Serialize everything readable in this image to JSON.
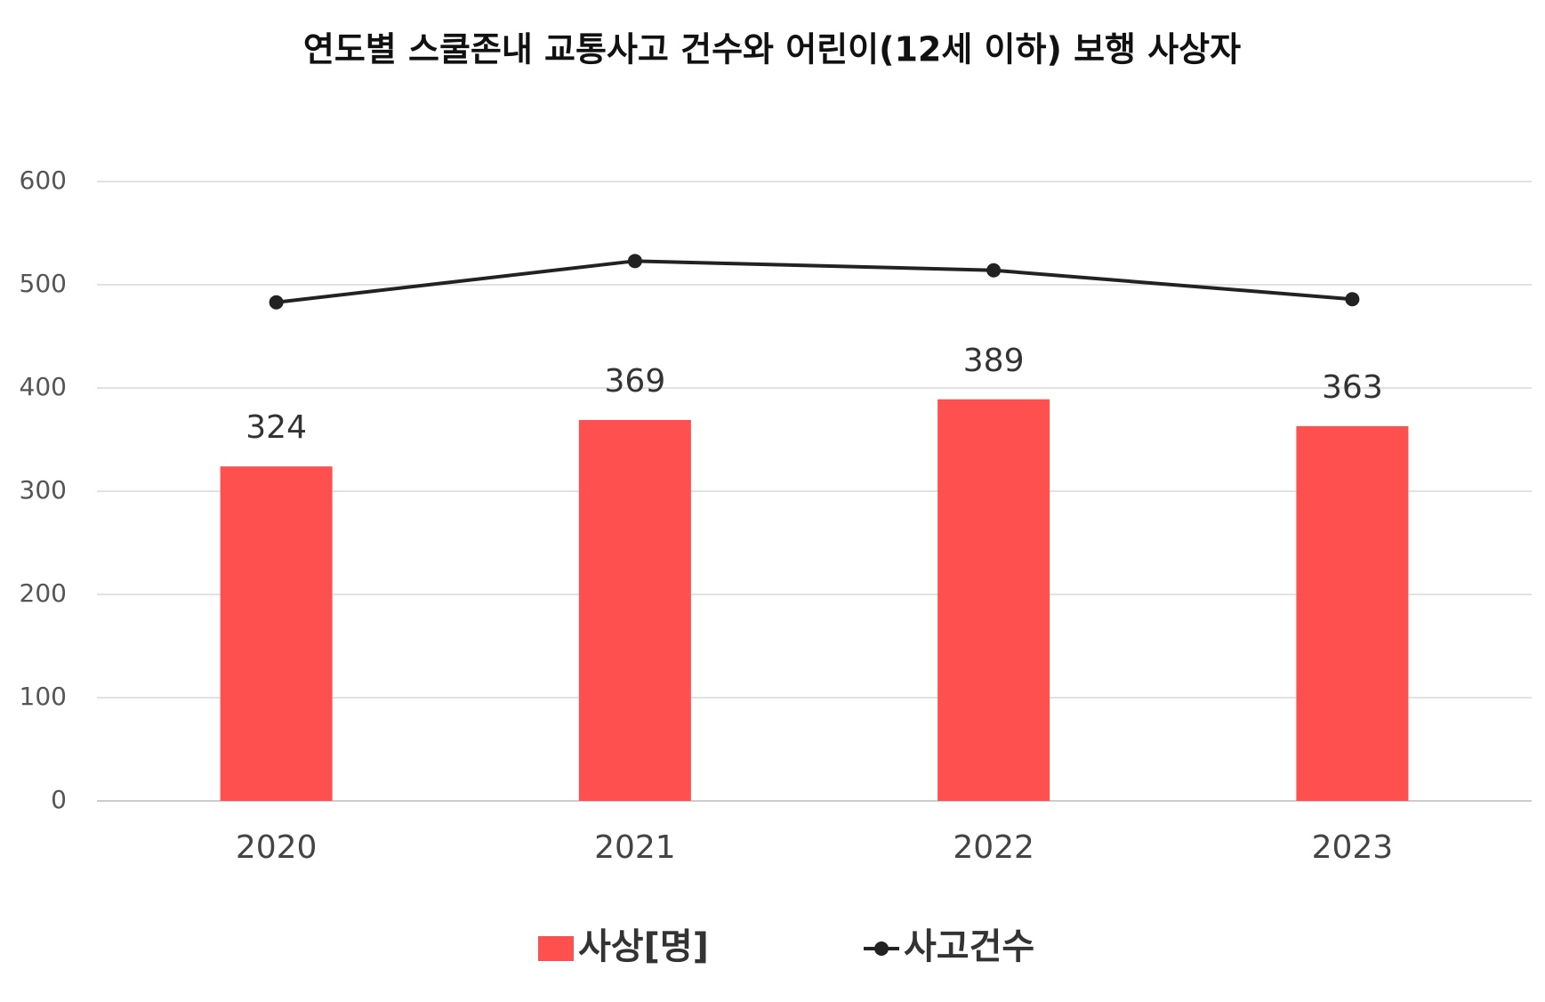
{
  "chart_data": {
    "type": "bar",
    "title": "연도별 스쿨존내 교통사고 건수와 어린이(12세 이하) 보행 사상자",
    "categories": [
      "2020",
      "2021",
      "2022",
      "2023"
    ],
    "series": [
      {
        "name": "사상[명]",
        "type": "bar",
        "color": "#ff5050",
        "values": [
          324,
          369,
          389,
          363
        ]
      },
      {
        "name": "사고건수",
        "type": "line",
        "color": "#222222",
        "values": [
          483,
          523,
          514,
          486
        ]
      }
    ],
    "ylim": [
      0,
      600
    ],
    "yticks": [
      0,
      100,
      200,
      300,
      400,
      500,
      600
    ],
    "grid": true
  }
}
